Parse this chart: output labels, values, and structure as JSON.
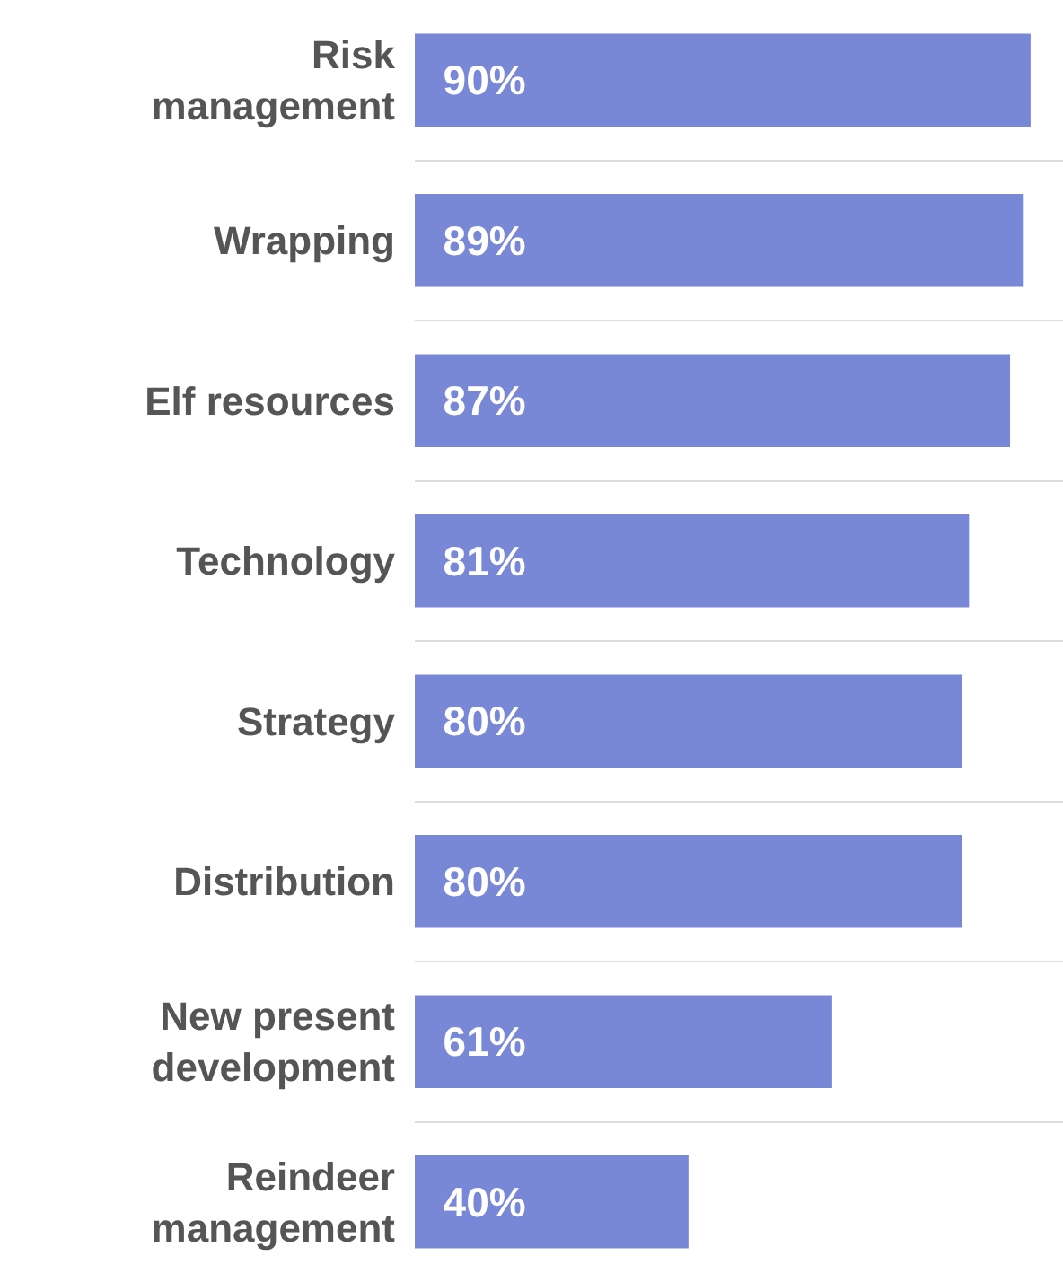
{
  "chart_data": {
    "type": "bar",
    "orientation": "horizontal",
    "categories": [
      "Risk management",
      "Wrapping",
      "Elf resources",
      "Technology",
      "Strategy",
      "Distribution",
      "New present development",
      "Reindeer management"
    ],
    "values": [
      90,
      89,
      87,
      81,
      80,
      80,
      61,
      40
    ],
    "value_labels": [
      "90%",
      "89%",
      "87%",
      "81%",
      "80%",
      "80%",
      "61%",
      "40%"
    ],
    "color": "#7887d6",
    "grid": "y"
  }
}
